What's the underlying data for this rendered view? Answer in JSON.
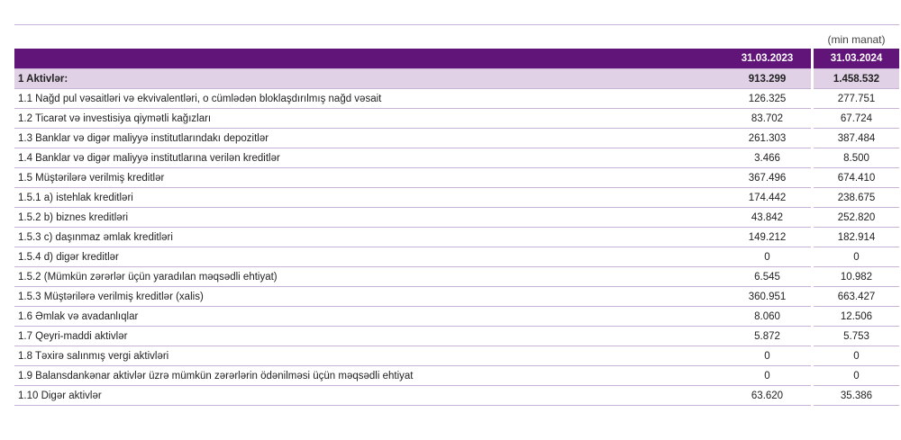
{
  "unit": "(min manat)",
  "columns": [
    "31.03.2023",
    "31.03.2024"
  ],
  "colors": {
    "header": "#621579",
    "total_row": "#e0d1e6",
    "rule": "#c9b3d6"
  },
  "rows": [
    {
      "label": "1 Aktivlər:",
      "v1": "913.299",
      "v2": "1.458.532",
      "total": true
    },
    {
      "label": "1.1 Nağd pul vəsaitləri və ekvivalentləri, o cümlədən bloklaşdırılmış nağd vəsait",
      "v1": "126.325",
      "v2": "277.751"
    },
    {
      "label": "1.2 Ticarət və investisiya qiymətli kağızları",
      "v1": "83.702",
      "v2": "67.724"
    },
    {
      "label": "1.3 Banklar və digər maliyyə institutlarındakı depozitlər",
      "v1": "261.303",
      "v2": "387.484"
    },
    {
      "label": "1.4 Banklar və digər maliyyə institutlarına verilən kreditlər",
      "v1": "3.466",
      "v2": "8.500"
    },
    {
      "label": "1.5 Müştərilərə verilmiş kreditlər",
      "v1": "367.496",
      "v2": "674.410"
    },
    {
      "label": "1.5.1 a) istehlak kreditləri",
      "v1": "174.442",
      "v2": "238.675"
    },
    {
      "label": "1.5.2 b) biznes kreditləri",
      "v1": "43.842",
      "v2": "252.820"
    },
    {
      "label": "1.5.3 c) daşınmaz əmlak kreditləri",
      "v1": "149.212",
      "v2": "182.914"
    },
    {
      "label": "1.5.4 d) digər kreditlər",
      "v1": "0",
      "v2": "0"
    },
    {
      "label": "1.5.2 (Mümkün zərərlər üçün yaradılan məqsədli ehtiyat)",
      "v1": "6.545",
      "v2": "10.982"
    },
    {
      "label": "1.5.3 Müştərilərə verilmiş kreditlər (xalis)",
      "v1": "360.951",
      "v2": "663.427"
    },
    {
      "label": "1.6 Əmlak və avadanlıqlar",
      "v1": "8.060",
      "v2": "12.506"
    },
    {
      "label": "1.7 Qeyri-maddi aktivlər",
      "v1": "5.872",
      "v2": "5.753"
    },
    {
      "label": "1.8 Təxirə salınmış vergi aktivləri",
      "v1": "0",
      "v2": "0"
    },
    {
      "label": "1.9 Balansdankənar aktivlər üzrə mümkün zərərlərin ödənilməsi üçün məqsədli ehtiyat",
      "v1": "0",
      "v2": "0"
    },
    {
      "label": "1.10 Digər aktivlər",
      "v1": "63.620",
      "v2": "35.386"
    }
  ]
}
